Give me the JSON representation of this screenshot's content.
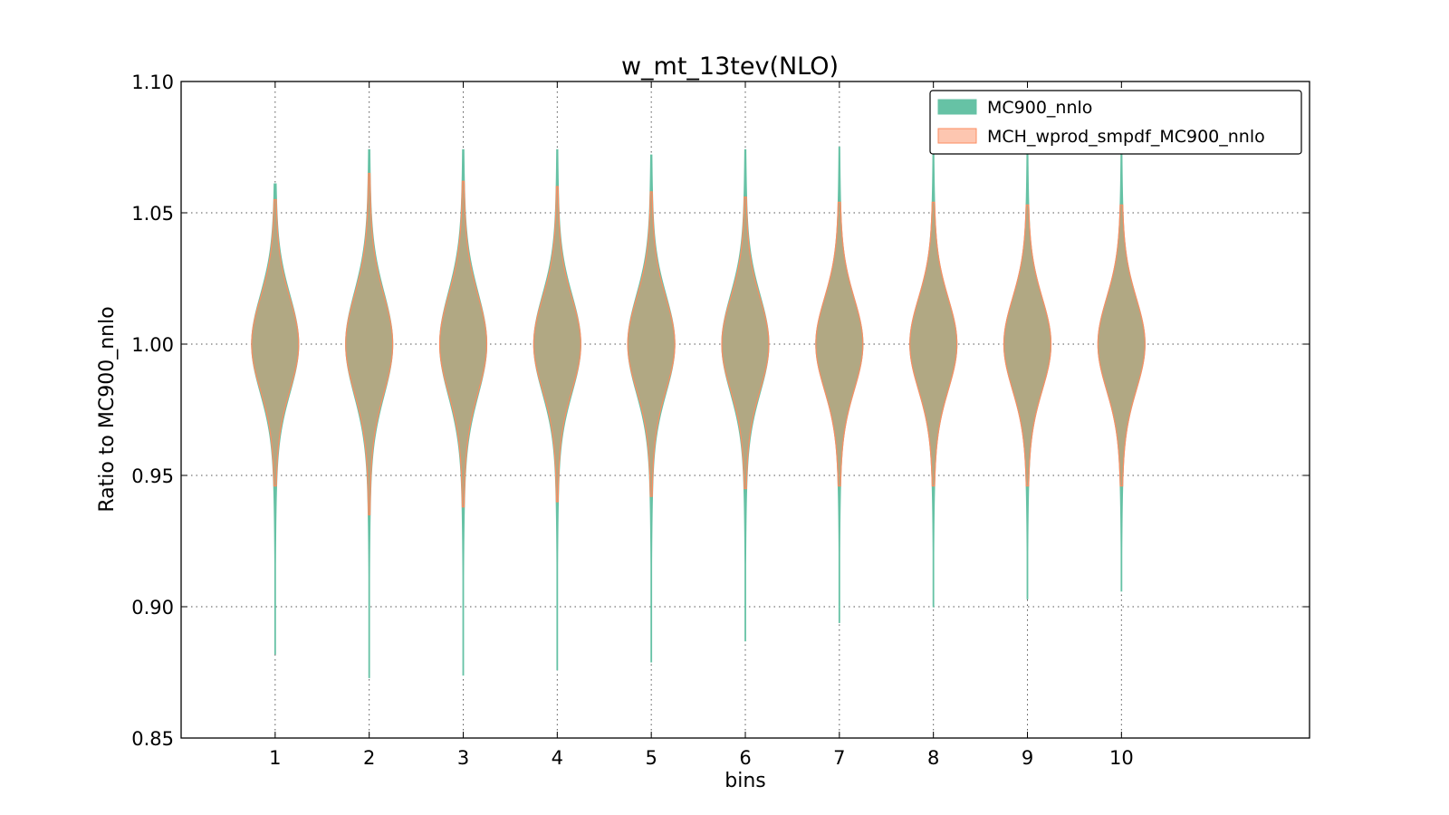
{
  "chart_data": {
    "type": "violin",
    "title": "w_mt_13tev(NLO)",
    "xlabel": "bins",
    "ylabel": "Ratio to MC900_nnlo",
    "ylim": [
      0.85,
      1.1
    ],
    "yticks": [
      "0.85",
      "0.90",
      "0.95",
      "1.00",
      "1.05",
      "1.10"
    ],
    "ytick_values": [
      0.85,
      0.9,
      0.95,
      1.0,
      1.05,
      1.1
    ],
    "categories": [
      "1",
      "2",
      "3",
      "4",
      "5",
      "6",
      "7",
      "8",
      "9",
      "10"
    ],
    "xlim": [
      0,
      12
    ],
    "grid": true,
    "legend_position": "top-right",
    "series": [
      {
        "name": "MC900_nnlo",
        "color": "#66c2a5",
        "mins": [
          0.882,
          0.873,
          0.874,
          0.876,
          0.879,
          0.887,
          0.894,
          0.9,
          0.903,
          0.906
        ],
        "maxs": [
          1.061,
          1.074,
          1.074,
          1.074,
          1.072,
          1.074,
          1.075,
          1.078,
          1.08,
          1.08
        ],
        "sigmas": [
          0.018,
          0.019,
          0.019,
          0.018,
          0.018,
          0.018,
          0.017,
          0.017,
          0.017,
          0.017
        ],
        "half_widths": [
          0.25,
          0.25,
          0.25,
          0.25,
          0.25,
          0.25,
          0.25,
          0.25,
          0.25,
          0.25
        ]
      },
      {
        "name": "MCH_wprod_smpdf_MC900_nnlo",
        "color": "#fc8d62",
        "mins": [
          0.946,
          0.935,
          0.938,
          0.94,
          0.942,
          0.945,
          0.946,
          0.946,
          0.946,
          0.946
        ],
        "maxs": [
          1.055,
          1.065,
          1.062,
          1.06,
          1.058,
          1.056,
          1.054,
          1.054,
          1.053,
          1.053
        ],
        "sigmas": [
          0.017,
          0.018,
          0.018,
          0.017,
          0.017,
          0.017,
          0.017,
          0.017,
          0.017,
          0.017
        ],
        "half_widths": [
          0.25,
          0.25,
          0.25,
          0.25,
          0.25,
          0.25,
          0.25,
          0.25,
          0.25,
          0.25
        ]
      }
    ],
    "overlap_color": "#b0a682"
  }
}
